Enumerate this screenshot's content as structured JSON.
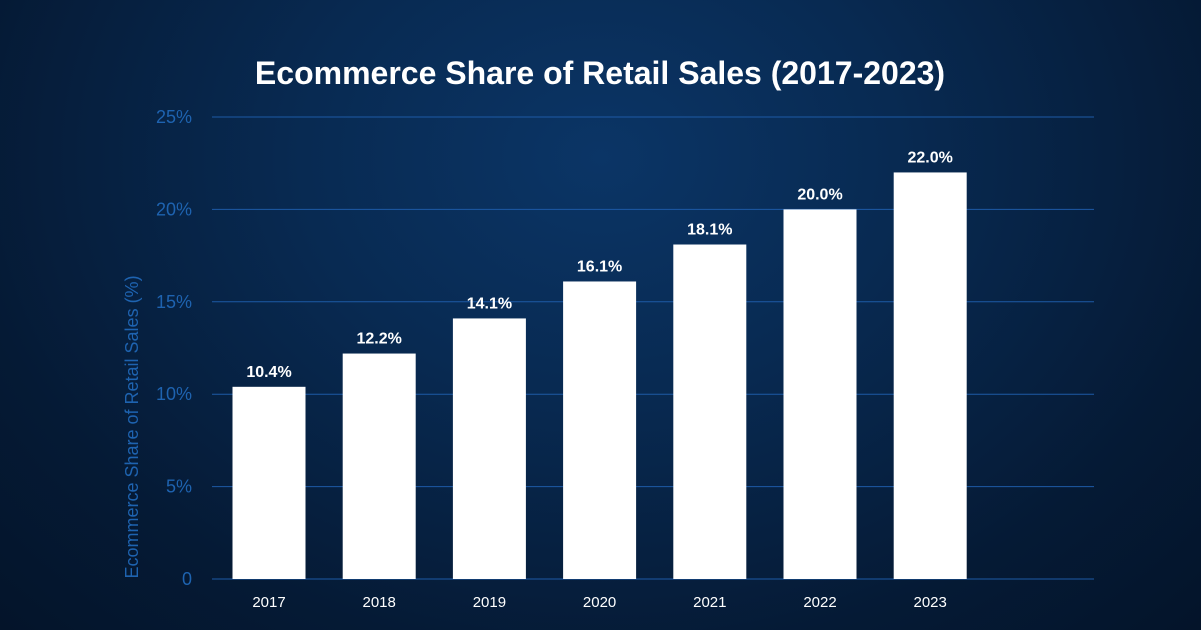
{
  "chart_data": {
    "type": "bar",
    "title": "Ecommerce Share of Retail Sales (2017-2023)",
    "xlabel": "",
    "ylabel": "Ecommerce Share of Retail Sales (%)",
    "categories": [
      "2017",
      "2018",
      "2019",
      "2020",
      "2021",
      "2022",
      "2023"
    ],
    "values": [
      10.4,
      12.2,
      14.1,
      16.1,
      18.1,
      20.0,
      22.0
    ],
    "data_labels": [
      "10.4%",
      "12.2%",
      "14.1%",
      "16.1%",
      "18.1%",
      "20.0%",
      "22.0%"
    ],
    "ylim": [
      0,
      25
    ],
    "y_ticks": [
      0,
      5,
      10,
      15,
      20,
      25
    ],
    "y_tick_labels": [
      "0",
      "5%",
      "10%",
      "15%",
      "20%",
      "25%"
    ],
    "grid": true,
    "legend": "none",
    "colors": {
      "bar": "#ffffff",
      "grid": "#1d5aa6",
      "axis_text": "#1e63b0",
      "title": "#ffffff"
    }
  }
}
